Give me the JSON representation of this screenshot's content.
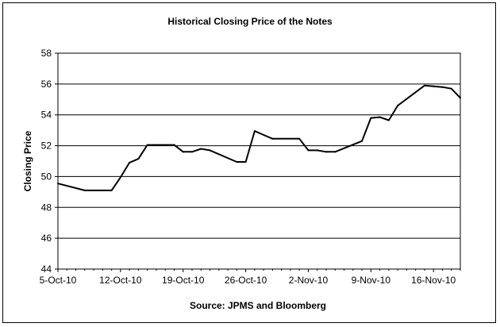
{
  "chart_data": {
    "type": "line",
    "title": "Historical Closing Price of the Notes",
    "xlabel": "Source: JPMS and Bloomberg",
    "ylabel": "Closing Price",
    "ylim": [
      44,
      58
    ],
    "y_ticks": [
      "44",
      "46",
      "48",
      "50",
      "52",
      "54",
      "56",
      "58"
    ],
    "x_tick_labels": [
      "5-Oct-10",
      "12-Oct-10",
      "19-Oct-10",
      "26-Oct-10",
      "2-Nov-10",
      "9-Nov-10",
      "16-Nov-10"
    ],
    "x_range": [
      "2010-10-05",
      "2010-11-19"
    ],
    "grid": true,
    "legend": "none",
    "series": [
      {
        "color": "#000000",
        "points": [
          {
            "x": "2010-10-05",
            "y": 49.55
          },
          {
            "x": "2010-10-08",
            "y": 49.1
          },
          {
            "x": "2010-10-11",
            "y": 49.1
          },
          {
            "x": "2010-10-12",
            "y": 49.95
          },
          {
            "x": "2010-10-13",
            "y": 50.9
          },
          {
            "x": "2010-10-14",
            "y": 51.15
          },
          {
            "x": "2010-10-15",
            "y": 52.05
          },
          {
            "x": "2010-10-18",
            "y": 52.05
          },
          {
            "x": "2010-10-19",
            "y": 51.6
          },
          {
            "x": "2010-10-20",
            "y": 51.6
          },
          {
            "x": "2010-10-21",
            "y": 51.8
          },
          {
            "x": "2010-10-22",
            "y": 51.7
          },
          {
            "x": "2010-10-25",
            "y": 50.95
          },
          {
            "x": "2010-10-26",
            "y": 50.95
          },
          {
            "x": "2010-10-27",
            "y": 52.95
          },
          {
            "x": "2010-10-28",
            "y": 52.7
          },
          {
            "x": "2010-10-29",
            "y": 52.45
          },
          {
            "x": "2010-11-01",
            "y": 52.45
          },
          {
            "x": "2010-11-02",
            "y": 51.7
          },
          {
            "x": "2010-11-03",
            "y": 51.7
          },
          {
            "x": "2010-11-04",
            "y": 51.6
          },
          {
            "x": "2010-11-05",
            "y": 51.6
          },
          {
            "x": "2010-11-08",
            "y": 52.3
          },
          {
            "x": "2010-11-09",
            "y": 53.8
          },
          {
            "x": "2010-11-10",
            "y": 53.85
          },
          {
            "x": "2010-11-11",
            "y": 53.65
          },
          {
            "x": "2010-11-12",
            "y": 54.6
          },
          {
            "x": "2010-11-15",
            "y": 55.9
          },
          {
            "x": "2010-11-16",
            "y": 55.85
          },
          {
            "x": "2010-11-17",
            "y": 55.8
          },
          {
            "x": "2010-11-18",
            "y": 55.7
          },
          {
            "x": "2010-11-19",
            "y": 55.1
          }
        ]
      }
    ]
  }
}
